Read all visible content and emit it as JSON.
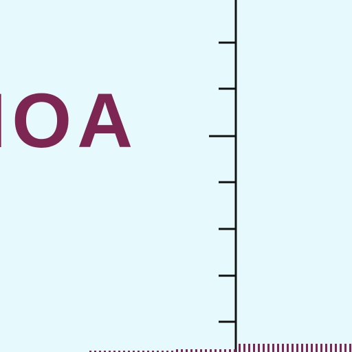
{
  "map": {
    "place_label": "IOA",
    "colors": {
      "water": "#e6fafd",
      "label": "#7d2553",
      "line": "#111111",
      "tick_bottom": "#7d2553"
    }
  }
}
